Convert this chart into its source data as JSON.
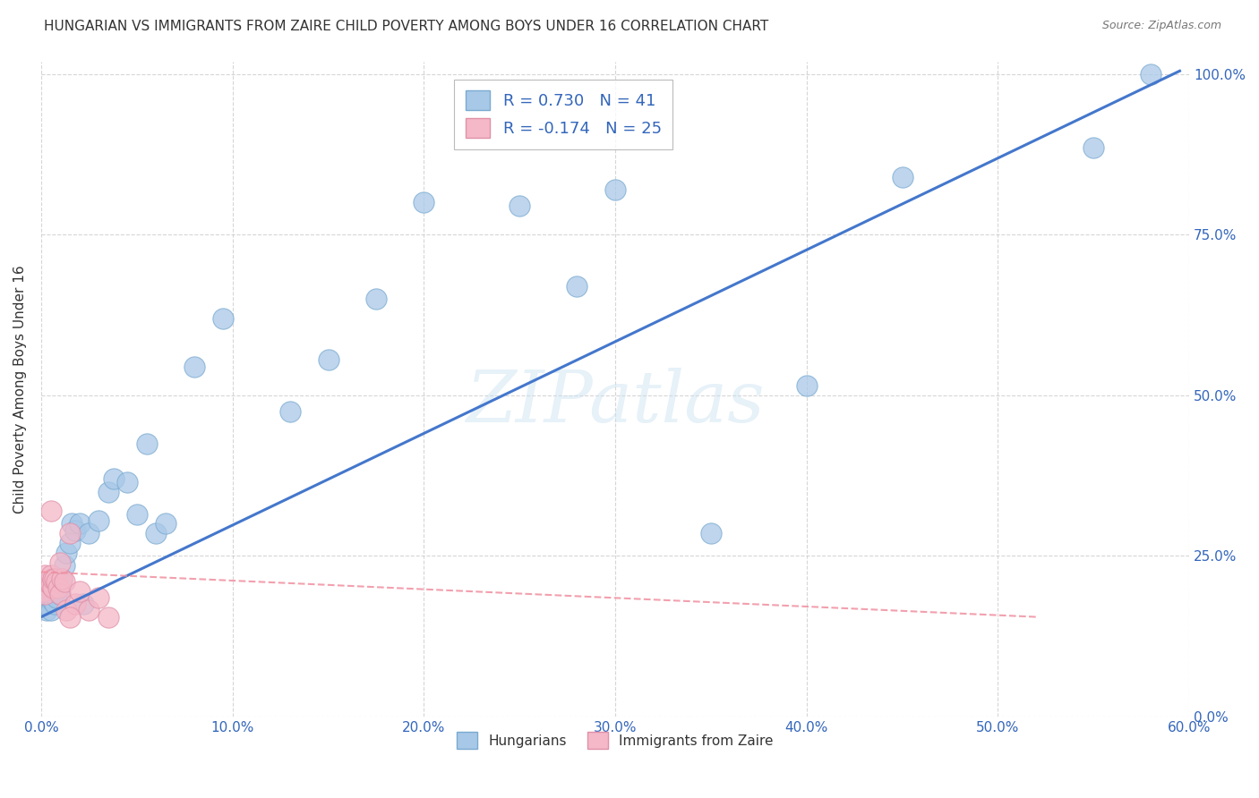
{
  "title": "HUNGARIAN VS IMMIGRANTS FROM ZAIRE CHILD POVERTY AMONG BOYS UNDER 16 CORRELATION CHART",
  "source": "Source: ZipAtlas.com",
  "ylabel_label": "Child Poverty Among Boys Under 16",
  "watermark": "ZIPatlas",
  "hungarian_color": "#a8c8e8",
  "hungarian_edge_color": "#7aaad0",
  "zaire_color": "#f4b8c8",
  "zaire_edge_color": "#e090a8",
  "hungarian_line_color": "#4477cc",
  "zaire_line_color": "#f090a0",
  "bg_color": "#ffffff",
  "grid_color": "#cccccc",
  "title_color": "#333333",
  "tick_color": "#3366bb",
  "legend_text_color": "#3366bb",
  "bottom_legend_text_color": "#333333",
  "hungarian_x": [
    0.001,
    0.002,
    0.003,
    0.004,
    0.005,
    0.005,
    0.006,
    0.007,
    0.008,
    0.01,
    0.011,
    0.012,
    0.013,
    0.015,
    0.016,
    0.018,
    0.02,
    0.022,
    0.025,
    0.03,
    0.035,
    0.038,
    0.045,
    0.05,
    0.055,
    0.06,
    0.065,
    0.08,
    0.095,
    0.13,
    0.15,
    0.175,
    0.2,
    0.25,
    0.28,
    0.3,
    0.35,
    0.4,
    0.45,
    0.55,
    0.58
  ],
  "hungarian_y": [
    0.175,
    0.185,
    0.165,
    0.185,
    0.165,
    0.195,
    0.18,
    0.175,
    0.185,
    0.19,
    0.215,
    0.235,
    0.255,
    0.27,
    0.3,
    0.29,
    0.3,
    0.175,
    0.285,
    0.305,
    0.35,
    0.37,
    0.365,
    0.315,
    0.425,
    0.285,
    0.3,
    0.545,
    0.62,
    0.475,
    0.555,
    0.65,
    0.8,
    0.795,
    0.67,
    0.82,
    0.285,
    0.515,
    0.84,
    0.885,
    1.0
  ],
  "zaire_x": [
    0.001,
    0.002,
    0.002,
    0.003,
    0.004,
    0.005,
    0.005,
    0.006,
    0.006,
    0.007,
    0.008,
    0.009,
    0.01,
    0.011,
    0.012,
    0.013,
    0.015,
    0.018,
    0.02,
    0.025,
    0.03,
    0.035,
    0.005,
    0.01,
    0.015
  ],
  "zaire_y": [
    0.195,
    0.22,
    0.19,
    0.21,
    0.21,
    0.22,
    0.205,
    0.2,
    0.215,
    0.215,
    0.21,
    0.2,
    0.19,
    0.215,
    0.21,
    0.165,
    0.285,
    0.175,
    0.195,
    0.165,
    0.185,
    0.155,
    0.32,
    0.24,
    0.155
  ],
  "h_line_x0": 0.0,
  "h_line_x1": 0.595,
  "h_line_y0": 0.155,
  "h_line_y1": 1.005,
  "z_line_x0": 0.0,
  "z_line_x1": 0.52,
  "z_line_y0": 0.225,
  "z_line_y1": 0.155,
  "xlim": [
    0.0,
    0.6
  ],
  "ylim": [
    0.0,
    1.02
  ],
  "xtick_vals": [
    0.0,
    0.1,
    0.2,
    0.3,
    0.4,
    0.5,
    0.6
  ],
  "ytick_vals": [
    0.0,
    0.25,
    0.5,
    0.75,
    1.0
  ],
  "xtick_labels": [
    "0.0%",
    "10.0%",
    "20.0%",
    "30.0%",
    "40.0%",
    "50.0%",
    "60.0%"
  ],
  "ytick_labels": [
    "0.0%",
    "25.0%",
    "50.0%",
    "75.0%",
    "100.0%"
  ]
}
